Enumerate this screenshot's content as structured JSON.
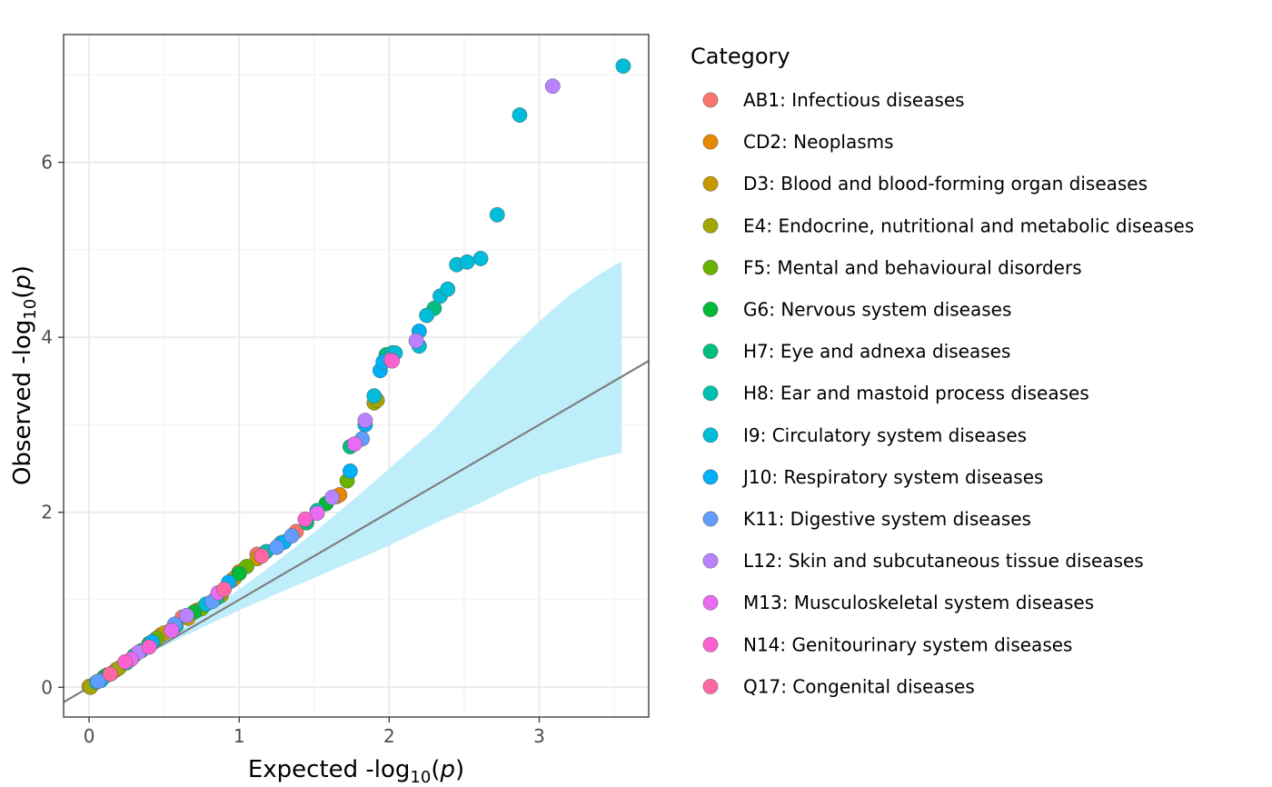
{
  "chart_data": {
    "type": "scatter",
    "xlabel": "Expected -log10(p)",
    "ylabel": "Observed -log10(p)",
    "xlim": [
      -0.17,
      3.73
    ],
    "ylim": [
      -0.34,
      7.46
    ],
    "x_ticks": [
      0,
      1,
      2,
      3
    ],
    "y_ticks": [
      0,
      2,
      4,
      6
    ],
    "grid": true,
    "reference_line": {
      "slope": 1,
      "intercept": 0,
      "color": "#7f7f7f"
    },
    "confidence_band": {
      "color": "#bfeefb",
      "points": [
        {
          "x": 0.3,
          "lower": 0.3,
          "upper": 0.3
        },
        {
          "x": 0.5,
          "lower": 0.47,
          "upper": 0.53
        },
        {
          "x": 0.8,
          "lower": 0.72,
          "upper": 0.88
        },
        {
          "x": 1.0,
          "lower": 0.88,
          "upper": 1.12
        },
        {
          "x": 1.2,
          "lower": 1.03,
          "upper": 1.37
        },
        {
          "x": 1.5,
          "lower": 1.25,
          "upper": 1.77
        },
        {
          "x": 1.8,
          "lower": 1.47,
          "upper": 2.2
        },
        {
          "x": 2.0,
          "lower": 1.62,
          "upper": 2.5
        },
        {
          "x": 2.3,
          "lower": 1.87,
          "upper": 2.95
        },
        {
          "x": 2.6,
          "lower": 2.1,
          "upper": 3.5
        },
        {
          "x": 2.8,
          "lower": 2.27,
          "upper": 3.85
        },
        {
          "x": 3.0,
          "lower": 2.42,
          "upper": 4.18
        },
        {
          "x": 3.2,
          "lower": 2.52,
          "upper": 4.48
        },
        {
          "x": 3.4,
          "lower": 2.62,
          "upper": 4.72
        },
        {
          "x": 3.55,
          "lower": 2.68,
          "upper": 4.87
        }
      ]
    },
    "legend": {
      "title": "Category",
      "position": "right"
    },
    "series": [
      {
        "name": "AB1: Infectious diseases",
        "color": "#F8766D",
        "points": [
          [
            0.18,
            0.2
          ],
          [
            0.62,
            0.8
          ],
          [
            0.95,
            1.22
          ],
          [
            1.12,
            1.52
          ],
          [
            1.38,
            1.78
          ]
        ]
      },
      {
        "name": "CD2: Neoplasms",
        "color": "#E58700",
        "points": [
          [
            0.48,
            0.6
          ],
          [
            0.72,
            0.88
          ],
          [
            1.0,
            1.32
          ],
          [
            1.65,
            2.18
          ],
          [
            1.67,
            2.2
          ]
        ]
      },
      {
        "name": "D3: Blood and blood-forming organ diseases",
        "color": "#C99800",
        "points": [
          [
            0.0,
            0.01
          ],
          [
            0.15,
            0.16
          ],
          [
            0.5,
            0.62
          ],
          [
            0.66,
            0.79
          ],
          [
            0.97,
            1.25
          ],
          [
            1.12,
            1.47
          ]
        ]
      },
      {
        "name": "E4: Endocrine, nutritional and metabolic diseases",
        "color": "#A3A500",
        "points": [
          [
            0.01,
            0.0
          ],
          [
            0.2,
            0.22
          ],
          [
            0.55,
            0.66
          ],
          [
            0.88,
            1.05
          ],
          [
            1.9,
            3.25
          ],
          [
            1.92,
            3.28
          ]
        ]
      },
      {
        "name": "F5: Mental and behavioural disorders",
        "color": "#6BB100",
        "points": [
          [
            0.1,
            0.12
          ],
          [
            0.45,
            0.56
          ],
          [
            0.75,
            0.9
          ],
          [
            1.05,
            1.38
          ],
          [
            1.72,
            2.36
          ]
        ]
      },
      {
        "name": "G6: Nervous system diseases",
        "color": "#00BA38",
        "points": [
          [
            0.12,
            0.14
          ],
          [
            0.4,
            0.5
          ],
          [
            0.7,
            0.86
          ],
          [
            1.0,
            1.3
          ],
          [
            1.58,
            2.1
          ]
        ]
      },
      {
        "name": "H7: Eye and adnexa diseases",
        "color": "#00BF7D",
        "points": [
          [
            0.3,
            0.36
          ],
          [
            0.85,
            1.02
          ],
          [
            1.45,
            1.88
          ],
          [
            1.74,
            2.75
          ],
          [
            1.98,
            3.8
          ],
          [
            2.3,
            4.33
          ]
        ]
      },
      {
        "name": "H8: Ear and mastoid process diseases",
        "color": "#00C0AF",
        "points": [
          [
            0.25,
            0.28
          ],
          [
            0.58,
            0.7
          ],
          [
            1.18,
            1.55
          ],
          [
            1.52,
            2.02
          ],
          [
            2.02,
            3.82
          ]
        ]
      },
      {
        "name": "I9: Circulatory system diseases",
        "color": "#00BCD8",
        "points": [
          [
            0.05,
            0.06
          ],
          [
            0.35,
            0.42
          ],
          [
            0.78,
            0.95
          ],
          [
            1.28,
            1.65
          ],
          [
            1.9,
            3.33
          ],
          [
            2.04,
            3.82
          ],
          [
            2.2,
            3.9
          ],
          [
            2.25,
            4.25
          ],
          [
            2.34,
            4.47
          ],
          [
            2.39,
            4.55
          ],
          [
            2.45,
            4.83
          ],
          [
            2.52,
            4.86
          ],
          [
            2.61,
            4.9
          ],
          [
            2.72,
            5.4
          ],
          [
            2.87,
            6.54
          ],
          [
            3.56,
            7.1
          ]
        ]
      },
      {
        "name": "J10: Respiratory system diseases",
        "color": "#00B0F6",
        "points": [
          [
            0.08,
            0.08
          ],
          [
            0.42,
            0.52
          ],
          [
            0.93,
            1.2
          ],
          [
            1.3,
            1.66
          ],
          [
            1.74,
            2.47
          ],
          [
            1.84,
            3.0
          ],
          [
            1.94,
            3.62
          ],
          [
            1.96,
            3.72
          ],
          [
            2.2,
            4.07
          ]
        ]
      },
      {
        "name": "K11: Digestive system diseases",
        "color": "#619CFF",
        "points": [
          [
            0.06,
            0.07
          ],
          [
            0.57,
            0.72
          ],
          [
            0.82,
            0.98
          ],
          [
            1.25,
            1.6
          ],
          [
            1.35,
            1.73
          ],
          [
            1.82,
            2.84
          ]
        ]
      },
      {
        "name": "L12: Skin and subcutaneous tissue diseases",
        "color": "#B983FF",
        "points": [
          [
            0.33,
            0.4
          ],
          [
            0.65,
            0.82
          ],
          [
            1.62,
            2.17
          ],
          [
            1.84,
            3.05
          ],
          [
            2.18,
            3.96
          ],
          [
            3.09,
            6.87
          ]
        ]
      },
      {
        "name": "M13: Musculoskeletal system diseases",
        "color": "#E76BF3",
        "points": [
          [
            0.28,
            0.32
          ],
          [
            0.55,
            0.65
          ],
          [
            0.86,
            1.08
          ],
          [
            1.52,
            1.99
          ],
          [
            1.77,
            2.78
          ],
          [
            2.01,
            3.74
          ]
        ]
      },
      {
        "name": "N14: Genitourinary system diseases",
        "color": "#FD61D1",
        "points": [
          [
            0.24,
            0.29
          ],
          [
            0.4,
            0.46
          ],
          [
            1.44,
            1.92
          ],
          [
            2.02,
            3.73
          ]
        ]
      },
      {
        "name": "Q17: Congenital diseases",
        "color": "#FF67A4",
        "points": [
          [
            0.14,
            0.15
          ],
          [
            0.9,
            1.12
          ],
          [
            1.15,
            1.5
          ]
        ]
      }
    ]
  }
}
